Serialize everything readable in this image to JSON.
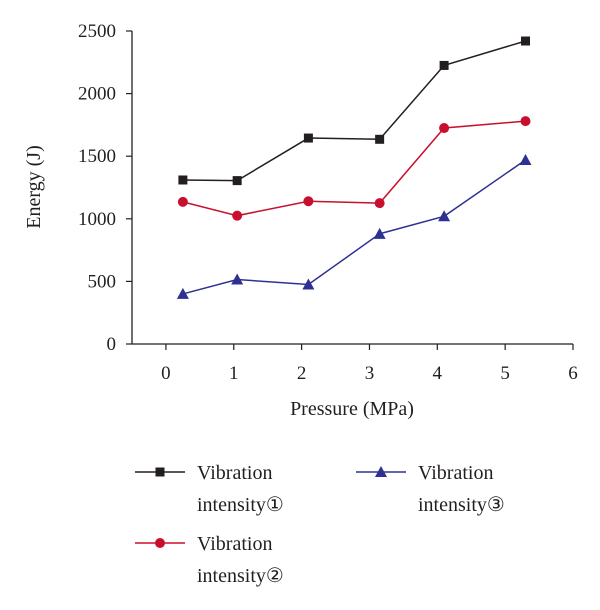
{
  "chart_data": {
    "type": "line",
    "xlabel": "Pressure (MPa)",
    "ylabel": "Energy (J)",
    "xlim": [
      -0.5,
      6
    ],
    "ylim": [
      0,
      2500
    ],
    "xticks": [
      0,
      1,
      2,
      3,
      4,
      5,
      6
    ],
    "yticks": [
      0,
      500,
      1000,
      1500,
      2000,
      2500
    ],
    "grid": false,
    "legend_position": "bottom",
    "series": [
      {
        "name": "Vibration intensity①",
        "name_lines": [
          "Vibration",
          "intensity①"
        ],
        "color": "#231f20",
        "marker": "square",
        "x": [
          0.25,
          1.05,
          2.1,
          3.15,
          4.1,
          5.3
        ],
        "y": [
          1310,
          1305,
          1645,
          1635,
          2225,
          2420
        ]
      },
      {
        "name": "Vibration intensity②",
        "name_lines": [
          "Vibration",
          "intensity②"
        ],
        "color": "#c8102e",
        "marker": "circle",
        "x": [
          0.25,
          1.05,
          2.1,
          3.15,
          4.1,
          5.3
        ],
        "y": [
          1135,
          1025,
          1140,
          1125,
          1725,
          1780
        ]
      },
      {
        "name": "Vibration intensity③",
        "name_lines": [
          "Vibration",
          "intensity③"
        ],
        "color": "#2e3192",
        "marker": "triangle",
        "x": [
          0.25,
          1.05,
          2.1,
          3.15,
          4.1,
          5.3
        ],
        "y": [
          400,
          515,
          475,
          880,
          1020,
          1470
        ]
      }
    ]
  }
}
